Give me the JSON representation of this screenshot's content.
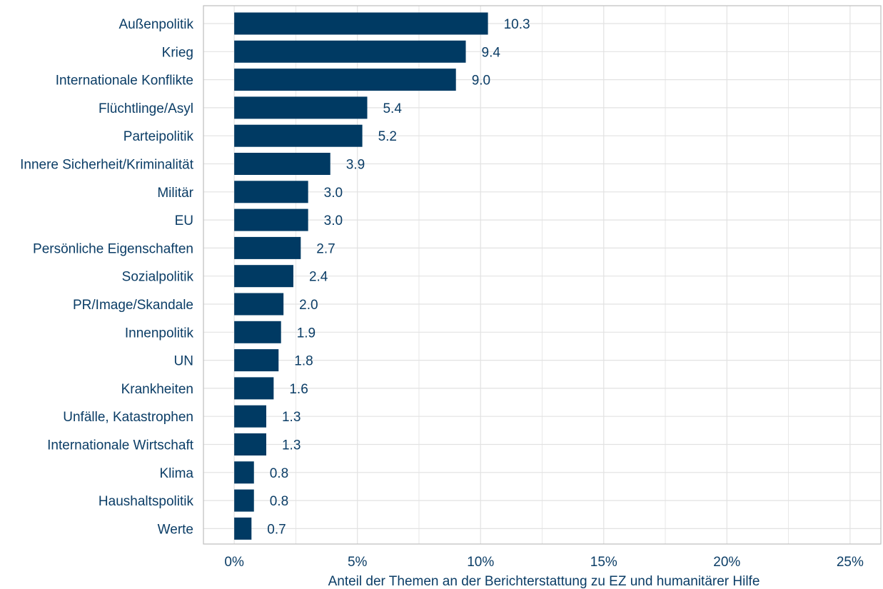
{
  "chart_data": {
    "type": "bar",
    "orientation": "horizontal",
    "categories": [
      "Außenpolitik",
      "Krieg",
      "Internationale Konflikte",
      "Flüchtlinge/Asyl",
      "Parteipolitik",
      "Innere Sicherheit/Kriminalität",
      "Militär",
      "EU",
      "Persönliche Eigenschaften",
      "Sozialpolitik",
      "PR/Image/Skandale",
      "Innenpolitik",
      "UN",
      "Krankheiten",
      "Unfälle, Katastrophen",
      "Internationale Wirtschaft",
      "Klima",
      "Haushaltspolitik",
      "Werte"
    ],
    "values": [
      10.3,
      9.4,
      9.0,
      5.4,
      5.2,
      3.9,
      3.0,
      3.0,
      2.7,
      2.4,
      2.0,
      1.9,
      1.8,
      1.6,
      1.3,
      1.3,
      0.8,
      0.8,
      0.7
    ],
    "value_labels": [
      "10.3",
      "9.4",
      "9.0",
      "5.4",
      "5.2",
      "3.9",
      "3.0",
      "3.0",
      "2.7",
      "2.4",
      "2.0",
      "1.9",
      "1.8",
      "1.6",
      "1.3",
      "1.3",
      "0.8",
      "0.8",
      "0.7"
    ],
    "xlabel": "Anteil der Themen an der Berichterstattung zu EZ und humanitärer Hilfe",
    "ylabel": "",
    "xlim": [
      -1.25,
      26.25
    ],
    "x_ticks": [
      0,
      5,
      10,
      15,
      20,
      25
    ],
    "x_tick_labels": [
      "0%",
      "5%",
      "10%",
      "15%",
      "20%",
      "25%"
    ],
    "grid": true,
    "legend": false,
    "colors": {
      "bar": "#003a63",
      "text": "#0b3d66",
      "grid": "#e2e2e2",
      "border": "#bfbfbf"
    }
  }
}
